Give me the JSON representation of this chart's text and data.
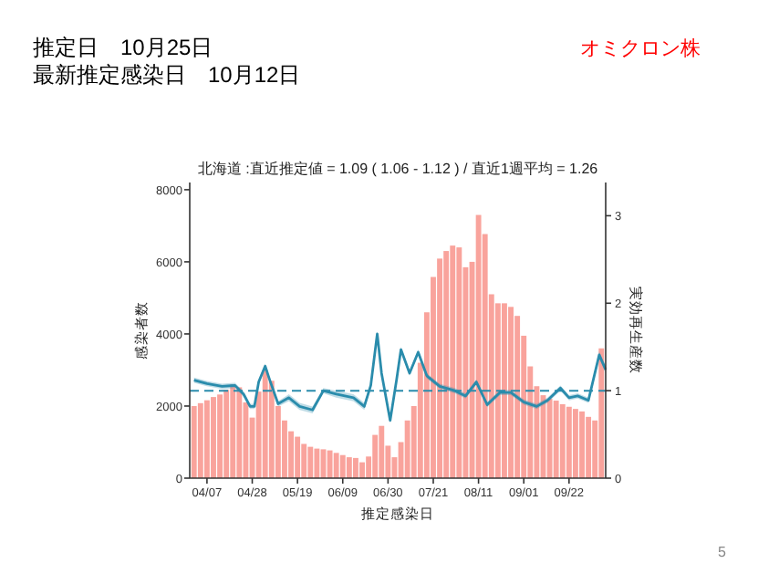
{
  "chart_data": {
    "type": "bar",
    "title": "北海道 :直近推定値 = 1.09 ( 1.06 - 1.12 ) / 直近1週平均 = 1.26",
    "xlabel": "推定感染日",
    "ylabel": "感染者数",
    "y2label": "実効再生産数",
    "annotations": [
      "推定日　10月25日",
      "最新推定感染日　10月12日",
      "オミクロン株",
      "5"
    ],
    "xlim": [
      "--03-30",
      "--10-09"
    ],
    "xticks": [
      {
        "value": "--04-07",
        "label": "04/07"
      },
      {
        "value": "--04-28",
        "label": "04/28"
      },
      {
        "value": "--05-19",
        "label": "05/19"
      },
      {
        "value": "--06-09",
        "label": "06/09"
      },
      {
        "value": "--06-30",
        "label": "06/30"
      },
      {
        "value": "--07-21",
        "label": "07/21"
      },
      {
        "value": "--08-11",
        "label": "08/11"
      },
      {
        "value": "--09-01",
        "label": "09/01"
      },
      {
        "value": "--09-22",
        "label": "09/22"
      }
    ],
    "ylim": [
      0,
      8200
    ],
    "yticks": [
      0,
      2000,
      4000,
      6000,
      8000
    ],
    "y2lim": [
      0,
      3.38
    ],
    "y2ticks": [
      0,
      1,
      2,
      3
    ],
    "grid": false,
    "ref_lines": [
      {
        "axis": "y2",
        "value": 1,
        "color": "#2a8cac",
        "line_style": "dashed"
      }
    ],
    "series": [
      {
        "color": "#f9a39c",
        "x": [
          "--04-01",
          "--04-04",
          "--04-07",
          "--04-10",
          "--04-13",
          "--04-16",
          "--04-19",
          "--04-22",
          "--04-25",
          "--04-28",
          "--05-01",
          "--05-04",
          "--05-07",
          "--05-10",
          "--05-13",
          "--05-16",
          "--05-19",
          "--05-22",
          "--05-25",
          "--05-28",
          "--05-31",
          "--06-03",
          "--06-06",
          "--06-09",
          "--06-12",
          "--06-15",
          "--06-18",
          "--06-21",
          "--06-24",
          "--06-27",
          "--06-30",
          "--07-03",
          "--07-06",
          "--07-09",
          "--07-12",
          "--07-15",
          "--07-18",
          "--07-21",
          "--07-24",
          "--07-27",
          "--07-30",
          "--08-02",
          "--08-05",
          "--08-08",
          "--08-11",
          "--08-14",
          "--08-17",
          "--08-20",
          "--08-23",
          "--08-26",
          "--08-29",
          "--09-01",
          "--09-04",
          "--09-07",
          "--09-10",
          "--09-13",
          "--09-16",
          "--09-19",
          "--09-22",
          "--09-25",
          "--09-28",
          "--10-01",
          "--10-04",
          "--10-07"
        ],
        "values": [
          2000,
          2080,
          2160,
          2250,
          2320,
          2450,
          2600,
          2520,
          2100,
          1680,
          2400,
          3000,
          2700,
          2000,
          1600,
          1300,
          1150,
          950,
          870,
          820,
          800,
          770,
          700,
          640,
          580,
          560,
          440,
          600,
          1200,
          1450,
          900,
          580,
          1000,
          1600,
          2000,
          3200,
          4600,
          5580,
          6090,
          6300,
          6450,
          6400,
          5850,
          6000,
          7300,
          6770,
          5100,
          4850,
          4850,
          4750,
          4500,
          3950,
          3100,
          2550,
          2300,
          2200,
          2150,
          2050,
          1980,
          1920,
          1850,
          1700,
          1600,
          3600
        ]
      },
      {
        "type": "line",
        "axis": "y2",
        "color": "#2a8cac",
        "x": [
          "--04-01",
          "--04-07",
          "--04-14",
          "--04-20",
          "--04-24",
          "--04-27",
          "--04-29",
          "--05-01",
          "--05-04",
          "--05-06",
          "--05-10",
          "--05-15",
          "--05-20",
          "--05-26",
          "--05-31",
          "--06-06",
          "--06-14",
          "--06-19",
          "--06-22",
          "--06-25",
          "--06-27",
          "--07-01",
          "--07-04",
          "--07-06",
          "--07-10",
          "--07-14",
          "--07-18",
          "--07-24",
          "--07-31",
          "--08-05",
          "--08-10",
          "--08-15",
          "--08-21",
          "--08-26",
          "--09-01",
          "--09-07",
          "--09-12",
          "--09-18",
          "--09-22",
          "--09-26",
          "--10-01",
          "--10-06",
          "--10-09"
        ],
        "values": [
          1.12,
          1.08,
          1.05,
          1.06,
          0.96,
          0.82,
          0.82,
          1.1,
          1.28,
          1.13,
          0.85,
          0.92,
          0.82,
          0.78,
          1.0,
          0.96,
          0.92,
          0.82,
          1.06,
          1.65,
          1.2,
          0.66,
          1.13,
          1.47,
          1.2,
          1.44,
          1.17,
          1.05,
          1.0,
          0.94,
          1.1,
          0.84,
          0.98,
          0.98,
          0.87,
          0.82,
          0.89,
          1.03,
          0.92,
          0.94,
          0.89,
          1.41,
          1.24
        ],
        "lower": [
          1.09,
          1.05,
          1.02,
          1.03,
          0.93,
          0.79,
          0.79,
          1.07,
          1.25,
          1.1,
          0.82,
          0.88,
          0.78,
          0.74,
          0.97,
          0.92,
          0.88,
          0.78,
          1.03,
          1.62,
          1.17,
          0.63,
          1.1,
          1.44,
          1.17,
          1.41,
          1.14,
          1.02,
          0.97,
          0.91,
          1.07,
          0.81,
          0.95,
          0.95,
          0.84,
          0.79,
          0.86,
          1.0,
          0.89,
          0.91,
          0.86,
          1.37,
          1.2
        ],
        "upper": [
          1.15,
          1.11,
          1.08,
          1.09,
          0.99,
          0.85,
          0.85,
          1.13,
          1.31,
          1.16,
          0.88,
          0.96,
          0.86,
          0.82,
          1.03,
          1.0,
          0.96,
          0.86,
          1.09,
          1.68,
          1.23,
          0.69,
          1.16,
          1.5,
          1.23,
          1.47,
          1.2,
          1.08,
          1.03,
          0.97,
          1.13,
          0.87,
          1.01,
          1.01,
          0.9,
          0.85,
          0.92,
          1.06,
          0.95,
          0.97,
          0.92,
          1.45,
          1.28
        ]
      }
    ]
  }
}
